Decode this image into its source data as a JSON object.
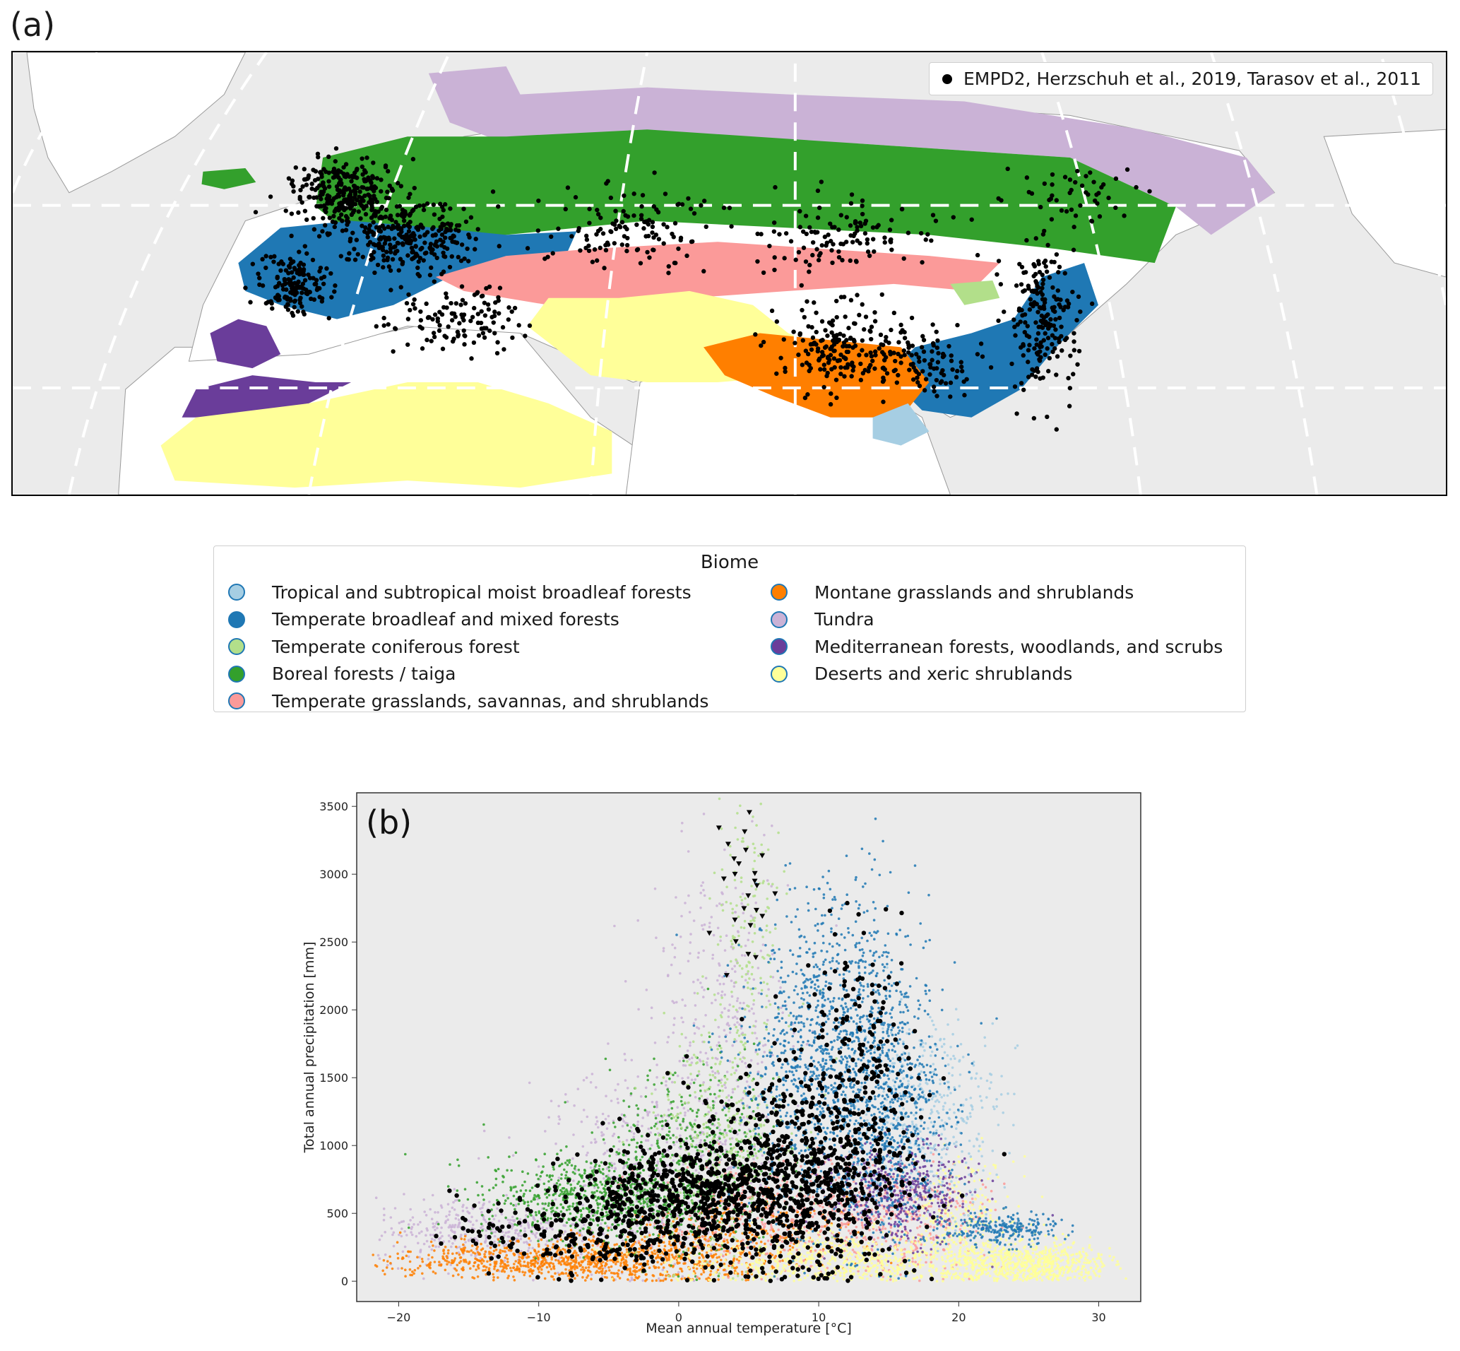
{
  "panel_a": {
    "label": "(a)",
    "legend_label": "EMPD2, Herzschuh et al., 2019, Tarasov et al., 2011",
    "background_color": "#ebebeb",
    "land_color": "#ffffff"
  },
  "biome_legend": {
    "title": "Biome",
    "items": [
      {
        "label": "Tropical and subtropical moist broadleaf forests",
        "color": "#a6cee3"
      },
      {
        "label": "Temperate broadleaf and mixed forests",
        "color": "#1f78b4"
      },
      {
        "label": "Temperate coniferous forest",
        "color": "#b2df8a"
      },
      {
        "label": "Boreal forests / taiga",
        "color": "#33a02c"
      },
      {
        "label": "Temperate grasslands, savannas, and shrublands",
        "color": "#fb9a99"
      },
      {
        "label": "Montane grasslands and shrublands",
        "color": "#ff7f00"
      },
      {
        "label": "Tundra",
        "color": "#cab2d6"
      },
      {
        "label": "Mediterranean forests, woodlands, and scrubs",
        "color": "#6a3d9a"
      },
      {
        "label": "Deserts and xeric shrublands",
        "color": "#ffff99"
      }
    ]
  },
  "chart_data": {
    "type": "scatter",
    "panel_label": "(b)",
    "xlabel": "Mean annual temperature [°C]",
    "ylabel": "Total annual precipitation [mm]",
    "xlim": [
      -23,
      33
    ],
    "ylim": [
      -150,
      3600
    ],
    "xticks": [
      -20,
      -10,
      0,
      10,
      20,
      30
    ],
    "yticks": [
      0,
      500,
      1000,
      1500,
      2000,
      2500,
      3000,
      3500
    ],
    "grid": false,
    "background": "#ebebeb",
    "series": [
      {
        "color": "#cab2d6",
        "clusters": [
          {
            "x": -14,
            "y": 380,
            "sx": 4,
            "sy": 120,
            "n": 400
          },
          {
            "x": -2,
            "y": 800,
            "sx": 4,
            "sy": 400,
            "n": 500
          },
          {
            "x": 3,
            "y": 1900,
            "sx": 2.5,
            "sy": 600,
            "n": 350
          }
        ]
      },
      {
        "color": "#ff7f00",
        "clusters": [
          {
            "x": -12,
            "y": 150,
            "sx": 5,
            "sy": 70,
            "n": 500
          },
          {
            "x": -3,
            "y": 170,
            "sx": 4,
            "sy": 90,
            "n": 500
          },
          {
            "x": 4,
            "y": 300,
            "sx": 4,
            "sy": 160,
            "n": 300
          }
        ]
      },
      {
        "color": "#33a02c",
        "clusters": [
          {
            "x": -6,
            "y": 620,
            "sx": 4,
            "sy": 150,
            "n": 700
          },
          {
            "x": 1,
            "y": 900,
            "sx": 3,
            "sy": 350,
            "n": 500
          }
        ]
      },
      {
        "color": "#b2df8a",
        "clusters": [
          {
            "x": 3,
            "y": 1100,
            "sx": 2.5,
            "sy": 450,
            "n": 400
          },
          {
            "x": 5,
            "y": 2600,
            "sx": 1.2,
            "sy": 500,
            "n": 150
          }
        ]
      },
      {
        "color": "#fb9a99",
        "clusters": [
          {
            "x": 8,
            "y": 500,
            "sx": 5,
            "sy": 200,
            "n": 500
          },
          {
            "x": 16,
            "y": 450,
            "sx": 3,
            "sy": 200,
            "n": 300
          }
        ]
      },
      {
        "color": "#ffff99",
        "clusters": [
          {
            "x": 12,
            "y": 150,
            "sx": 6,
            "sy": 100,
            "n": 700
          },
          {
            "x": 25,
            "y": 130,
            "sx": 3,
            "sy": 80,
            "n": 700
          },
          {
            "x": 20,
            "y": 500,
            "sx": 2,
            "sy": 200,
            "n": 250
          }
        ]
      },
      {
        "color": "#6a3d9a",
        "clusters": [
          {
            "x": 16,
            "y": 650,
            "sx": 2.5,
            "sy": 180,
            "n": 500
          }
        ]
      },
      {
        "color": "#a6cee3",
        "clusters": [
          {
            "x": 18,
            "y": 1250,
            "sx": 2.5,
            "sy": 350,
            "n": 400
          }
        ]
      },
      {
        "color": "#1f78b4",
        "clusters": [
          {
            "x": 10,
            "y": 1500,
            "sx": 3,
            "sy": 500,
            "n": 900
          },
          {
            "x": 15,
            "y": 1300,
            "sx": 2,
            "sy": 500,
            "n": 700
          },
          {
            "x": 12,
            "y": 2300,
            "sx": 2.5,
            "sy": 400,
            "n": 250
          },
          {
            "x": 23,
            "y": 380,
            "sx": 2,
            "sy": 60,
            "n": 250
          }
        ]
      },
      {
        "color": "#000000",
        "marker": "circle",
        "clusters": [
          {
            "x": 2,
            "y": 650,
            "sx": 5,
            "sy": 180,
            "n": 650
          },
          {
            "x": 9,
            "y": 800,
            "sx": 4,
            "sy": 400,
            "n": 600
          },
          {
            "x": -6,
            "y": 350,
            "sx": 5,
            "sy": 150,
            "n": 250
          },
          {
            "x": 13,
            "y": 1500,
            "sx": 2,
            "sy": 500,
            "n": 200
          }
        ]
      },
      {
        "color": "#000000",
        "marker": "triangle",
        "clusters": [
          {
            "x": 5,
            "y": 2900,
            "sx": 0.9,
            "sy": 350,
            "n": 25
          }
        ]
      }
    ]
  }
}
